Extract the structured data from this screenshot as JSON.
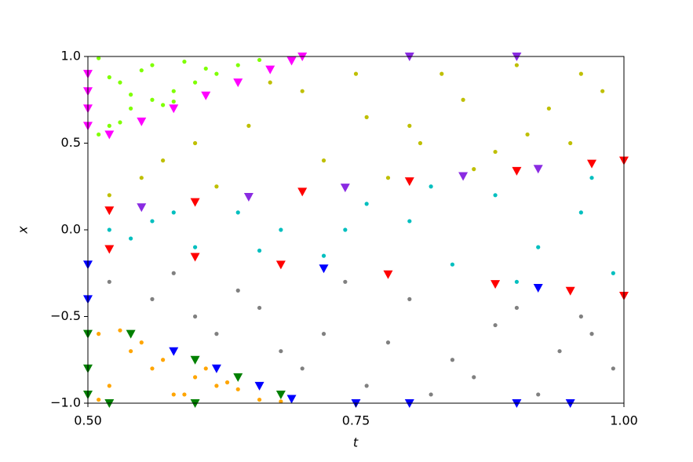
{
  "chart_data": {
    "type": "scatter",
    "x_label": "t",
    "y_label": "x",
    "xlim": [
      0.5,
      1.0
    ],
    "ylim": [
      -1.0,
      1.0
    ],
    "xticks": [
      {
        "value": 0.5,
        "label": "0.50"
      },
      0.75,
      {
        "value": 1.0,
        "label": "1.00"
      }
    ],
    "yticks": [
      {
        "value": -1.0,
        "label": "−1.0"
      },
      {
        "value": -0.5,
        "label": "−0.5"
      },
      {
        "value": 0.0,
        "label": "0.0"
      },
      0.5,
      {
        "value": 1.0,
        "label": "1.0"
      }
    ],
    "grid": false,
    "series": [
      {
        "color": "#7fff00",
        "marker": "circle",
        "x": [
          0.52,
          0.54,
          0.56,
          0.58,
          0.6,
          0.62,
          0.64,
          0.66,
          0.53,
          0.55,
          0.57,
          0.59,
          0.61,
          0.51,
          0.52,
          0.54,
          0.56,
          0.58,
          0.51,
          0.53
        ],
        "values": [
          0.6,
          0.7,
          0.75,
          0.8,
          0.85,
          0.9,
          0.95,
          0.98,
          0.85,
          0.92,
          0.72,
          0.97,
          0.93,
          0.55,
          0.88,
          0.78,
          0.95,
          0.74,
          0.99,
          0.62
        ]
      },
      {
        "color": "#bfbf00",
        "marker": "circle",
        "x": [
          0.55,
          0.6,
          0.65,
          0.7,
          0.75,
          0.8,
          0.85,
          0.9,
          0.95,
          0.98,
          0.72,
          0.78,
          0.83,
          0.88,
          0.93,
          0.62,
          0.67,
          0.52,
          0.57,
          0.76,
          0.86,
          0.96,
          0.81,
          0.91
        ],
        "values": [
          0.3,
          0.5,
          0.6,
          0.8,
          0.9,
          0.6,
          0.75,
          0.95,
          0.5,
          0.8,
          0.4,
          0.3,
          0.9,
          0.45,
          0.7,
          0.25,
          0.85,
          0.2,
          0.4,
          0.65,
          0.35,
          0.9,
          0.5,
          0.55
        ]
      },
      {
        "color": "#00bfbf",
        "marker": "circle",
        "x": [
          0.52,
          0.56,
          0.6,
          0.64,
          0.68,
          0.72,
          0.76,
          0.8,
          0.84,
          0.88,
          0.92,
          0.96,
          0.99,
          0.58,
          0.66,
          0.74,
          0.82,
          0.9,
          0.97,
          0.54
        ],
        "values": [
          0.0,
          0.05,
          -0.1,
          0.1,
          0.0,
          -0.15,
          0.15,
          0.05,
          -0.2,
          0.2,
          -0.1,
          0.1,
          -0.25,
          0.1,
          -0.12,
          0.0,
          0.25,
          -0.3,
          0.3,
          -0.05
        ]
      },
      {
        "color": "#808080",
        "marker": "circle",
        "x": [
          0.52,
          0.56,
          0.6,
          0.64,
          0.68,
          0.72,
          0.76,
          0.8,
          0.84,
          0.88,
          0.92,
          0.96,
          0.99,
          0.58,
          0.66,
          0.74,
          0.78,
          0.86,
          0.94,
          0.7,
          0.82,
          0.9,
          0.97,
          0.62
        ],
        "values": [
          -0.3,
          -0.4,
          -0.5,
          -0.35,
          -0.7,
          -0.6,
          -0.9,
          -0.4,
          -0.75,
          -0.55,
          -0.95,
          -0.5,
          -0.8,
          -0.25,
          -0.45,
          -0.3,
          -0.65,
          -0.85,
          -0.7,
          -0.8,
          -0.95,
          -0.45,
          -0.6,
          -0.6
        ]
      },
      {
        "color": "#ffa500",
        "marker": "circle",
        "x": [
          0.51,
          0.52,
          0.54,
          0.56,
          0.58,
          0.6,
          0.62,
          0.64,
          0.66,
          0.68,
          0.53,
          0.55,
          0.57,
          0.59,
          0.61,
          0.63,
          0.51
        ],
        "values": [
          -0.6,
          -0.9,
          -0.7,
          -0.8,
          -0.95,
          -0.85,
          -0.9,
          -0.92,
          -0.98,
          -0.99,
          -0.58,
          -0.65,
          -0.75,
          -0.95,
          -0.8,
          -0.88,
          -0.98
        ]
      },
      {
        "color": "#ff00ff",
        "marker": "triangle",
        "x": [
          0.5,
          0.5,
          0.5,
          0.5,
          0.52,
          0.55,
          0.58,
          0.61,
          0.64,
          0.67,
          0.69,
          0.7
        ],
        "values": [
          0.6,
          0.7,
          0.8,
          0.9,
          0.55,
          0.625,
          0.7,
          0.775,
          0.85,
          0.925,
          0.975,
          1.0
        ]
      },
      {
        "color": "#ff0000",
        "marker": "triangle",
        "x": [
          0.52,
          0.6,
          0.7,
          0.8,
          0.9,
          0.97,
          1.0,
          0.52,
          0.6,
          0.68,
          0.78,
          0.88,
          0.95,
          1.0
        ],
        "values": [
          0.112,
          0.16,
          0.22,
          0.28,
          0.34,
          0.382,
          0.4,
          -0.111,
          -0.156,
          -0.201,
          -0.257,
          -0.313,
          -0.352,
          -0.38
        ]
      },
      {
        "color": "#8a2be2",
        "marker": "triangle",
        "x": [
          0.55,
          0.65,
          0.74,
          0.85,
          0.92,
          0.8,
          0.9
        ],
        "values": [
          0.13,
          0.19,
          0.244,
          0.31,
          0.352,
          1.0,
          1.0
        ]
      },
      {
        "color": "#0000ff",
        "marker": "triangle",
        "x": [
          0.5,
          0.5,
          0.58,
          0.62,
          0.66,
          0.69,
          0.75,
          0.8,
          0.9,
          0.95,
          0.72,
          0.92
        ],
        "values": [
          -0.2,
          -0.4,
          -0.7,
          -0.8,
          -0.9,
          -0.975,
          -1.0,
          -1.0,
          -1.0,
          -1.0,
          -0.223,
          -0.335
        ]
      },
      {
        "color": "#008000",
        "marker": "triangle",
        "x": [
          0.5,
          0.5,
          0.5,
          0.54,
          0.6,
          0.64,
          0.68,
          0.52,
          0.6
        ],
        "values": [
          -0.6,
          -0.8,
          -0.95,
          -0.6,
          -0.75,
          -0.85,
          -0.95,
          -1.0,
          -1.0
        ]
      }
    ]
  }
}
